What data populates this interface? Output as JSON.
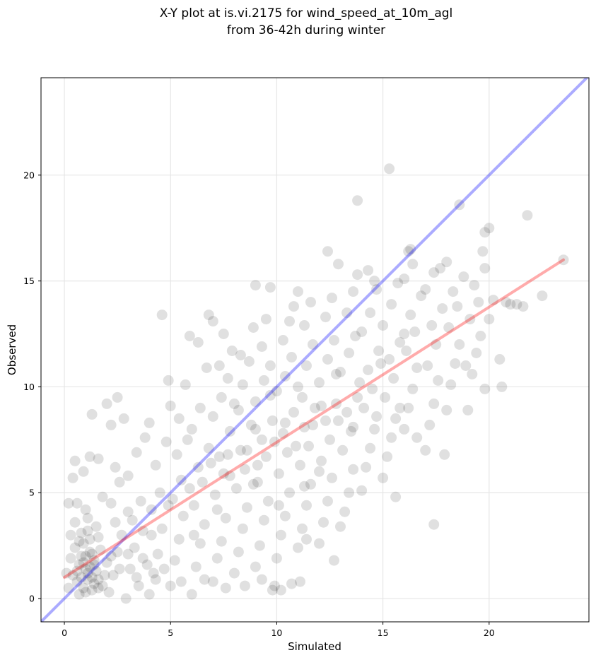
{
  "chart_data": {
    "type": "scatter",
    "title_line1": "X-Y plot at is.vi.2175 for wind_speed_at_10m_agl",
    "title_line2": "from 36-42h during winter",
    "xlabel": "Simulated",
    "ylabel": "Observed",
    "xlim": [
      -1.1,
      24.7
    ],
    "ylim": [
      -1.1,
      24.6
    ],
    "xticks": [
      0,
      5,
      10,
      15,
      20
    ],
    "yticks": [
      0,
      5,
      10,
      15,
      20
    ],
    "grid": true,
    "colors": {
      "points": "#000000",
      "identity_line": "#0000ff",
      "fit_line": "#ff0000",
      "grid": "#e6e6e6"
    },
    "identity_line": {
      "x": [
        -1.1,
        24.7
      ],
      "y": [
        -1.1,
        24.7
      ]
    },
    "fit_line": {
      "x": [
        0.0,
        23.5
      ],
      "y": [
        1.0,
        16.0
      ]
    },
    "points": [
      [
        0.3,
        1.9
      ],
      [
        0.4,
        1.1
      ],
      [
        0.5,
        2.4
      ],
      [
        0.6,
        0.8
      ],
      [
        0.7,
        1.6
      ],
      [
        0.8,
        3.1
      ],
      [
        0.9,
        0.5
      ],
      [
        1.0,
        2.0
      ],
      [
        1.1,
        1.2
      ],
      [
        1.2,
        2.8
      ],
      [
        1.3,
        0.4
      ],
      [
        1.4,
        1.8
      ],
      [
        1.5,
        3.4
      ],
      [
        1.6,
        0.9
      ],
      [
        1.7,
        2.3
      ],
      [
        0.5,
        3.6
      ],
      [
        0.8,
        1.0
      ],
      [
        1.0,
        0.3
      ],
      [
        1.2,
        1.5
      ],
      [
        1.4,
        0.7
      ],
      [
        0.6,
        4.5
      ],
      [
        0.9,
        2.6
      ],
      [
        1.1,
        3.8
      ],
      [
        1.3,
        2.1
      ],
      [
        1.5,
        1.3
      ],
      [
        1.8,
        0.6
      ],
      [
        2.0,
        1.7
      ],
      [
        0.7,
        0.2
      ],
      [
        1.0,
        4.2
      ],
      [
        1.6,
        2.9
      ],
      [
        0.4,
        5.7
      ],
      [
        0.5,
        6.5
      ],
      [
        0.9,
        6.0
      ],
      [
        1.2,
        6.7
      ],
      [
        1.6,
        6.6
      ],
      [
        1.3,
        8.7
      ],
      [
        0.2,
        4.5
      ],
      [
        0.3,
        3.0
      ],
      [
        0.1,
        1.2
      ],
      [
        0.2,
        0.5
      ],
      [
        2.1,
        0.3
      ],
      [
        2.3,
        1.1
      ],
      [
        2.5,
        2.2
      ],
      [
        2.7,
        3.0
      ],
      [
        2.2,
        4.5
      ],
      [
        2.6,
        5.5
      ],
      [
        2.4,
        6.2
      ],
      [
        2.9,
        0.0
      ],
      [
        3.1,
        1.4
      ],
      [
        3.3,
        2.4
      ],
      [
        3.5,
        0.6
      ],
      [
        3.7,
        1.9
      ],
      [
        3.2,
        3.7
      ],
      [
        3.6,
        4.6
      ],
      [
        3.0,
        5.8
      ],
      [
        3.4,
        6.9
      ],
      [
        3.8,
        7.6
      ],
      [
        2.8,
        8.5
      ],
      [
        2.5,
        9.5
      ],
      [
        2.2,
        8.2
      ],
      [
        2.0,
        9.2
      ],
      [
        4.0,
        0.2
      ],
      [
        4.2,
        1.2
      ],
      [
        4.4,
        2.1
      ],
      [
        4.6,
        3.3
      ],
      [
        4.1,
        4.2
      ],
      [
        4.5,
        5.0
      ],
      [
        4.3,
        6.3
      ],
      [
        4.8,
        7.4
      ],
      [
        4.0,
        8.3
      ],
      [
        4.6,
        13.4
      ],
      [
        4.9,
        10.3
      ],
      [
        5.0,
        0.6
      ],
      [
        5.2,
        1.8
      ],
      [
        5.4,
        2.8
      ],
      [
        5.6,
        3.9
      ],
      [
        5.1,
        4.7
      ],
      [
        5.5,
        5.6
      ],
      [
        5.3,
        6.8
      ],
      [
        5.8,
        7.5
      ],
      [
        5.0,
        9.1
      ],
      [
        5.4,
        8.5
      ],
      [
        5.7,
        10.1
      ],
      [
        5.9,
        12.4
      ],
      [
        6.0,
        0.2
      ],
      [
        6.2,
        1.5
      ],
      [
        6.4,
        2.6
      ],
      [
        6.6,
        3.5
      ],
      [
        6.1,
        4.4
      ],
      [
        6.5,
        5.5
      ],
      [
        6.3,
        6.2
      ],
      [
        6.8,
        7.1
      ],
      [
        6.0,
        8.0
      ],
      [
        6.4,
        9.0
      ],
      [
        6.7,
        10.9
      ],
      [
        6.3,
        12.1
      ],
      [
        6.8,
        13.4
      ],
      [
        7.0,
        13.1
      ],
      [
        7.0,
        0.8
      ],
      [
        7.2,
        1.9
      ],
      [
        7.4,
        2.7
      ],
      [
        7.6,
        3.8
      ],
      [
        7.1,
        4.9
      ],
      [
        7.5,
        5.9
      ],
      [
        7.3,
        6.7
      ],
      [
        7.8,
        7.9
      ],
      [
        7.0,
        8.6
      ],
      [
        7.4,
        9.5
      ],
      [
        7.7,
        10.4
      ],
      [
        7.3,
        11.0
      ],
      [
        7.5,
        12.5
      ],
      [
        7.9,
        11.7
      ],
      [
        8.0,
        1.2
      ],
      [
        8.2,
        2.2
      ],
      [
        8.4,
        3.3
      ],
      [
        8.6,
        4.3
      ],
      [
        8.1,
        5.2
      ],
      [
        8.5,
        6.1
      ],
      [
        8.3,
        7.0
      ],
      [
        8.8,
        8.2
      ],
      [
        8.0,
        9.2
      ],
      [
        8.4,
        10.1
      ],
      [
        8.7,
        11.2
      ],
      [
        8.3,
        11.5
      ],
      [
        8.9,
        12.8
      ],
      [
        9.0,
        14.8
      ],
      [
        9.0,
        1.5
      ],
      [
        9.2,
        2.5
      ],
      [
        9.4,
        3.7
      ],
      [
        9.6,
        4.6
      ],
      [
        9.1,
        5.5
      ],
      [
        9.5,
        6.7
      ],
      [
        9.3,
        7.5
      ],
      [
        9.8,
        8.4
      ],
      [
        9.0,
        9.3
      ],
      [
        9.4,
        10.3
      ],
      [
        9.7,
        11.0
      ],
      [
        9.3,
        11.9
      ],
      [
        9.5,
        13.2
      ],
      [
        9.7,
        14.7
      ],
      [
        9.9,
        0.6
      ],
      [
        9.8,
        0.4
      ],
      [
        10.0,
        1.9
      ],
      [
        10.2,
        3.0
      ],
      [
        10.4,
        3.9
      ],
      [
        10.6,
        5.0
      ],
      [
        10.1,
        5.9
      ],
      [
        10.5,
        6.9
      ],
      [
        10.3,
        7.8
      ],
      [
        10.8,
        8.8
      ],
      [
        10.0,
        9.8
      ],
      [
        10.4,
        10.5
      ],
      [
        10.7,
        11.4
      ],
      [
        10.3,
        12.2
      ],
      [
        10.6,
        13.1
      ],
      [
        10.8,
        13.8
      ],
      [
        10.2,
        0.4
      ],
      [
        11.0,
        2.4
      ],
      [
        11.2,
        3.3
      ],
      [
        11.4,
        4.4
      ],
      [
        11.6,
        5.4
      ],
      [
        11.1,
        6.3
      ],
      [
        11.5,
        7.2
      ],
      [
        11.3,
        8.1
      ],
      [
        11.8,
        9.0
      ],
      [
        11.0,
        10.0
      ],
      [
        11.4,
        11.0
      ],
      [
        11.7,
        12.0
      ],
      [
        11.3,
        12.9
      ],
      [
        11.6,
        14.0
      ],
      [
        11.0,
        14.5
      ],
      [
        11.1,
        0.8
      ],
      [
        11.4,
        2.8
      ],
      [
        12.0,
        2.6
      ],
      [
        12.2,
        3.6
      ],
      [
        12.4,
        4.6
      ],
      [
        12.6,
        5.7
      ],
      [
        12.1,
        6.5
      ],
      [
        12.5,
        7.5
      ],
      [
        12.3,
        8.4
      ],
      [
        12.8,
        9.2
      ],
      [
        12.0,
        10.2
      ],
      [
        12.4,
        11.3
      ],
      [
        12.7,
        12.2
      ],
      [
        12.3,
        13.3
      ],
      [
        12.6,
        14.2
      ],
      [
        12.4,
        16.4
      ],
      [
        12.7,
        1.8
      ],
      [
        12.9,
        15.8
      ],
      [
        13.0,
        3.4
      ],
      [
        13.2,
        4.1
      ],
      [
        13.4,
        5.0
      ],
      [
        13.6,
        6.1
      ],
      [
        13.1,
        7.0
      ],
      [
        13.5,
        7.9
      ],
      [
        13.3,
        8.8
      ],
      [
        13.8,
        9.5
      ],
      [
        13.0,
        10.7
      ],
      [
        13.4,
        11.6
      ],
      [
        13.7,
        12.4
      ],
      [
        13.3,
        13.5
      ],
      [
        13.6,
        14.5
      ],
      [
        13.8,
        15.3
      ],
      [
        13.8,
        18.8
      ],
      [
        14.0,
        5.1
      ],
      [
        14.2,
        6.2
      ],
      [
        14.4,
        7.1
      ],
      [
        14.6,
        8.0
      ],
      [
        14.1,
        9.0
      ],
      [
        14.5,
        9.9
      ],
      [
        14.3,
        10.8
      ],
      [
        14.8,
        11.7
      ],
      [
        14.0,
        12.6
      ],
      [
        14.4,
        13.5
      ],
      [
        14.7,
        14.6
      ],
      [
        14.3,
        15.5
      ],
      [
        14.6,
        15.0
      ],
      [
        15.0,
        5.7
      ],
      [
        15.2,
        6.7
      ],
      [
        15.4,
        7.6
      ],
      [
        15.6,
        8.5
      ],
      [
        15.1,
        9.5
      ],
      [
        15.5,
        10.4
      ],
      [
        15.3,
        11.3
      ],
      [
        15.8,
        12.1
      ],
      [
        15.0,
        12.9
      ],
      [
        15.4,
        13.9
      ],
      [
        15.7,
        14.9
      ],
      [
        15.3,
        20.3
      ],
      [
        15.6,
        4.8
      ],
      [
        16.0,
        8.0
      ],
      [
        16.2,
        9.0
      ],
      [
        16.4,
        9.9
      ],
      [
        16.6,
        10.9
      ],
      [
        16.1,
        11.7
      ],
      [
        16.5,
        12.6
      ],
      [
        16.3,
        13.4
      ],
      [
        16.8,
        14.3
      ],
      [
        16.0,
        15.1
      ],
      [
        16.4,
        15.8
      ],
      [
        16.2,
        16.4
      ],
      [
        16.3,
        16.5
      ],
      [
        16.6,
        7.6
      ],
      [
        17.0,
        7.0
      ],
      [
        17.2,
        8.2
      ],
      [
        17.4,
        9.2
      ],
      [
        17.6,
        10.3
      ],
      [
        17.1,
        11.0
      ],
      [
        17.5,
        12.0
      ],
      [
        17.3,
        12.9
      ],
      [
        17.8,
        13.7
      ],
      [
        17.0,
        14.6
      ],
      [
        17.4,
        15.4
      ],
      [
        17.7,
        15.6
      ],
      [
        17.4,
        3.5
      ],
      [
        17.9,
        6.8
      ],
      [
        18.0,
        8.9
      ],
      [
        18.2,
        10.1
      ],
      [
        18.4,
        11.1
      ],
      [
        18.6,
        12.0
      ],
      [
        18.1,
        12.8
      ],
      [
        18.5,
        13.8
      ],
      [
        18.3,
        14.5
      ],
      [
        18.8,
        15.2
      ],
      [
        18.0,
        15.9
      ],
      [
        18.6,
        18.6
      ],
      [
        18.9,
        11.0
      ],
      [
        19.0,
        8.9
      ],
      [
        19.2,
        10.6
      ],
      [
        19.4,
        11.6
      ],
      [
        19.6,
        12.4
      ],
      [
        19.1,
        13.2
      ],
      [
        19.5,
        14.0
      ],
      [
        19.3,
        14.8
      ],
      [
        19.8,
        15.6
      ],
      [
        19.7,
        16.4
      ],
      [
        19.8,
        17.3
      ],
      [
        20.0,
        17.5
      ],
      [
        19.8,
        9.9
      ],
      [
        20.0,
        13.2
      ],
      [
        20.2,
        14.1
      ],
      [
        20.5,
        11.3
      ],
      [
        20.6,
        10.0
      ],
      [
        20.8,
        14.0
      ],
      [
        21.0,
        13.9
      ],
      [
        21.3,
        13.9
      ],
      [
        21.6,
        13.8
      ],
      [
        21.8,
        18.1
      ],
      [
        22.5,
        14.3
      ],
      [
        23.5,
        16.0
      ],
      [
        0.6,
        1.3
      ],
      [
        0.8,
        2.0
      ],
      [
        1.0,
        1.4
      ],
      [
        1.1,
        0.9
      ],
      [
        1.3,
        1.0
      ],
      [
        0.9,
        1.7
      ],
      [
        1.2,
        2.2
      ],
      [
        1.4,
        1.6
      ],
      [
        0.7,
        2.7
      ],
      [
        1.1,
        3.2
      ],
      [
        1.6,
        0.5
      ],
      [
        1.9,
        1.1
      ],
      [
        2.2,
        2.0
      ],
      [
        2.6,
        1.4
      ],
      [
        3.0,
        2.1
      ],
      [
        3.4,
        1.0
      ],
      [
        3.9,
        1.6
      ],
      [
        4.3,
        0.9
      ],
      [
        4.7,
        1.4
      ],
      [
        5.5,
        0.8
      ],
      [
        6.6,
        0.9
      ],
      [
        7.6,
        0.5
      ],
      [
        8.5,
        0.6
      ],
      [
        9.3,
        0.9
      ],
      [
        10.7,
        0.7
      ],
      [
        1.8,
        4.8
      ],
      [
        2.4,
        3.6
      ],
      [
        3.0,
        4.1
      ],
      [
        3.7,
        3.2
      ],
      [
        4.1,
        3.0
      ],
      [
        7.8,
        5.8
      ],
      [
        8.6,
        7.0
      ],
      [
        9.1,
        6.3
      ],
      [
        9.9,
        7.4
      ],
      [
        10.9,
        7.2
      ],
      [
        11.7,
        8.2
      ],
      [
        12.9,
        8.4
      ],
      [
        13.6,
        8.1
      ],
      [
        14.7,
        8.6
      ],
      [
        15.8,
        9.0
      ],
      [
        8.2,
        8.9
      ],
      [
        9.0,
        8.0
      ],
      [
        9.7,
        9.6
      ],
      [
        10.4,
        8.3
      ],
      [
        11.2,
        9.5
      ],
      [
        12.1,
        9.1
      ],
      [
        12.8,
        10.6
      ],
      [
        13.9,
        10.2
      ],
      [
        14.9,
        11.1
      ],
      [
        16.0,
        12.5
      ],
      [
        6.9,
        6.4
      ],
      [
        7.7,
        6.8
      ],
      [
        5.9,
        5.2
      ],
      [
        4.9,
        4.4
      ],
      [
        6.1,
        3.0
      ],
      [
        7.2,
        4.2
      ],
      [
        8.9,
        5.4
      ],
      [
        10.1,
        4.4
      ],
      [
        11.3,
        5.3
      ],
      [
        12.0,
        6.0
      ]
    ]
  }
}
